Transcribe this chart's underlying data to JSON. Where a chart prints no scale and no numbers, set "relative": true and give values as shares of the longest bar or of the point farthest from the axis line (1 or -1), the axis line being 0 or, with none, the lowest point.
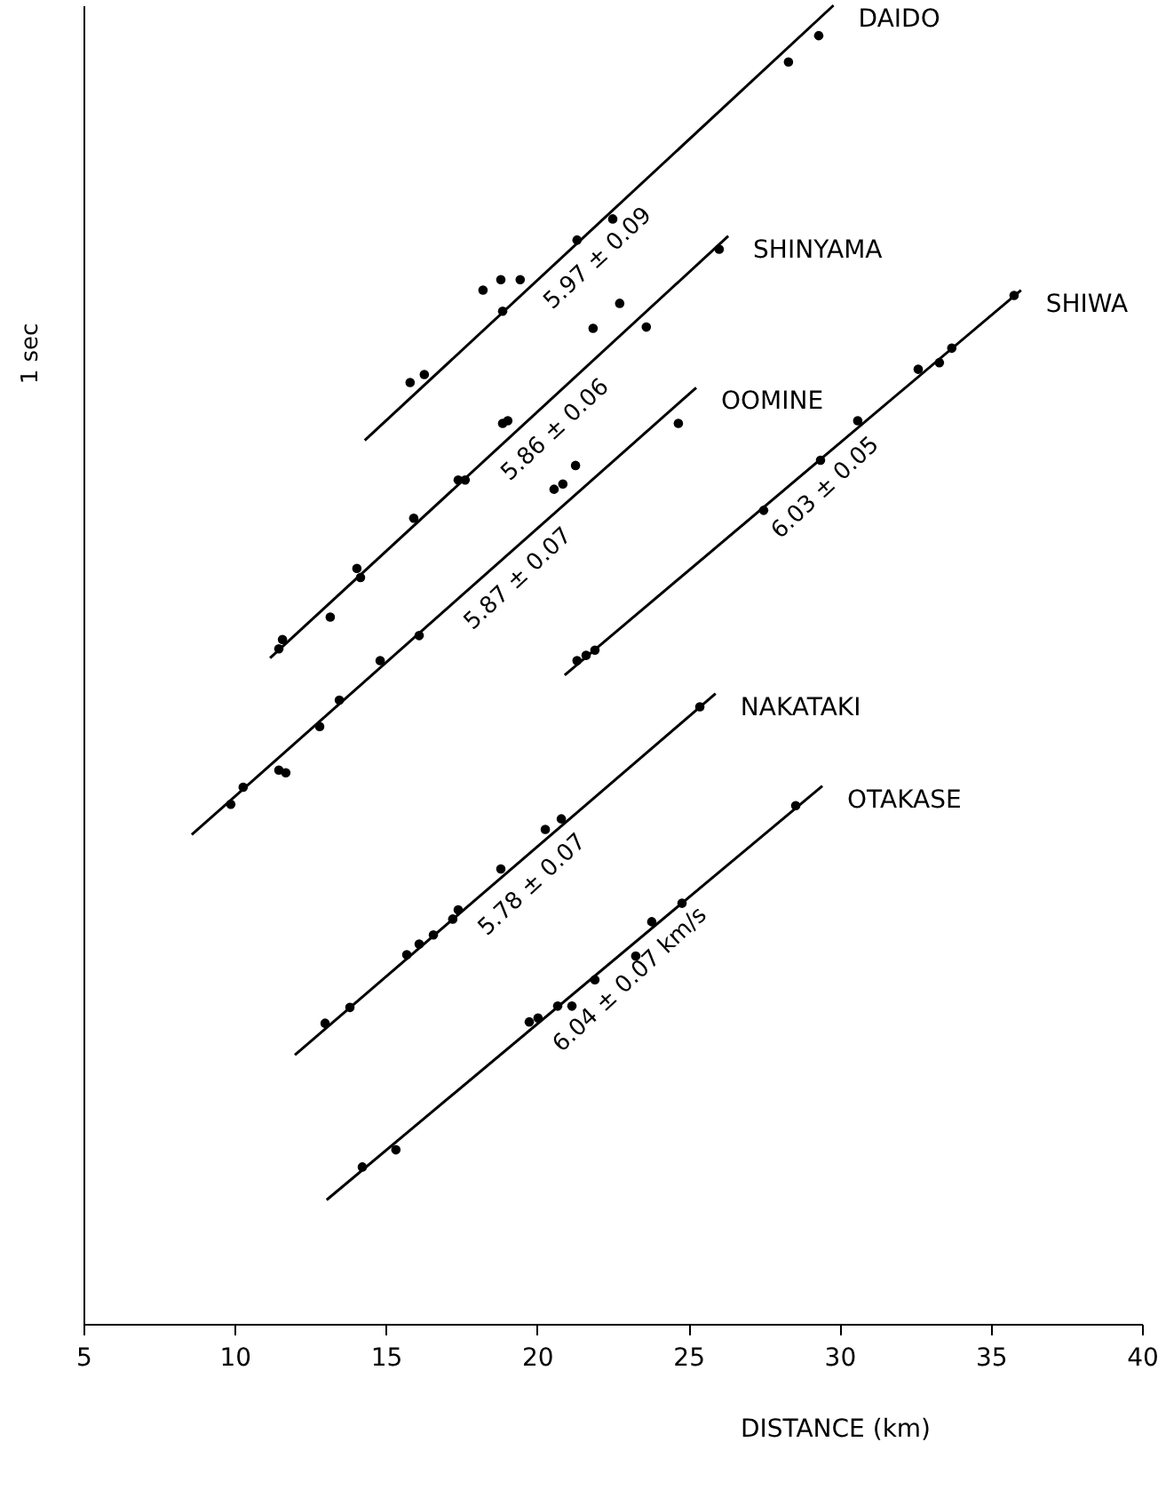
{
  "chart_data": {
    "type": "scatter",
    "relative": true,
    "xlabel": "DISTANCE  (km)",
    "xlim": [
      5,
      40
    ],
    "xticks": [
      5,
      10,
      15,
      20,
      25,
      30,
      35,
      40
    ],
    "grid": false,
    "series": [
      {
        "type": "scatter",
        "marker": "circle",
        "color": "#000000",
        "x": [
          15.8,
          16.27,
          18.21,
          18.8,
          18.86,
          19.44,
          21.32,
          22.5,
          28.31,
          29.31
        ],
        "values": [
          0.714,
          0.72,
          0.784,
          0.792,
          0.768,
          0.792,
          0.822,
          0.838,
          0.957,
          0.977
        ]
      },
      {
        "type": "line",
        "name": "DAIDO",
        "color": "#000000",
        "x": [
          14.3,
          29.8
        ],
        "values": [
          0.67,
          1.0
        ]
      },
      {
        "type": "scatter",
        "marker": "circle",
        "color": "#000000",
        "x": [
          11.46,
          11.58,
          13.16,
          14.04,
          14.16,
          15.92,
          17.39,
          17.62,
          18.86,
          19.03,
          21.85,
          22.73,
          23.61,
          26.02
        ],
        "values": [
          0.512,
          0.519,
          0.536,
          0.573,
          0.566,
          0.611,
          0.64,
          0.64,
          0.683,
          0.685,
          0.755,
          0.774,
          0.756,
          0.815
        ]
      },
      {
        "type": "line",
        "name": "SHINYAMA",
        "color": "#000000",
        "x": [
          11.17,
          26.32
        ],
        "values": [
          0.505,
          0.825
        ]
      },
      {
        "type": "scatter",
        "marker": "circle",
        "color": "#000000",
        "x": [
          9.87,
          10.28,
          11.46,
          11.69,
          12.81,
          13.46,
          14.81,
          16.1,
          20.56,
          20.85,
          21.27,
          24.67
        ],
        "values": [
          0.394,
          0.407,
          0.42,
          0.418,
          0.453,
          0.473,
          0.503,
          0.522,
          0.633,
          0.637,
          0.651,
          0.683
        ]
      },
      {
        "type": "line",
        "name": "OOMINE",
        "color": "#000000",
        "x": [
          8.58,
          25.26
        ],
        "values": [
          0.371,
          0.71
        ]
      },
      {
        "type": "scatter",
        "marker": "circle",
        "color": "#000000",
        "x": [
          21.32,
          21.62,
          21.91,
          27.49,
          29.37,
          30.6,
          32.6,
          33.3,
          33.71,
          35.77
        ],
        "values": [
          0.503,
          0.507,
          0.511,
          0.617,
          0.655,
          0.685,
          0.724,
          0.729,
          0.74,
          0.78
        ]
      },
      {
        "type": "line",
        "name": "SHIWA",
        "color": "#000000",
        "x": [
          20.91,
          36.0
        ],
        "values": [
          0.492,
          0.784
        ]
      },
      {
        "type": "scatter",
        "marker": "circle",
        "color": "#000000",
        "x": [
          12.99,
          13.81,
          15.69,
          16.1,
          16.57,
          17.21,
          17.39,
          18.8,
          20.27,
          20.8,
          25.38
        ],
        "values": [
          0.228,
          0.24,
          0.28,
          0.288,
          0.295,
          0.307,
          0.314,
          0.345,
          0.375,
          0.383,
          0.468
        ]
      },
      {
        "type": "line",
        "name": "NAKATAKI",
        "color": "#000000",
        "x": [
          11.99,
          25.9
        ],
        "values": [
          0.204,
          0.478
        ]
      },
      {
        "type": "scatter",
        "marker": "circle",
        "color": "#000000",
        "x": [
          14.22,
          15.33,
          19.74,
          20.03,
          20.68,
          21.15,
          21.91,
          23.26,
          23.79,
          24.79,
          28.55
        ],
        "values": [
          0.119,
          0.132,
          0.229,
          0.232,
          0.241,
          0.241,
          0.261,
          0.279,
          0.305,
          0.319,
          0.393
        ]
      },
      {
        "type": "line",
        "name": "OTAKASE",
        "color": "#000000",
        "x": [
          13.04,
          29.43
        ],
        "values": [
          0.094,
          0.408
        ]
      }
    ],
    "annotations": [
      {
        "text": "5.97 ± 0.09",
        "x": 21.44,
        "y": 0.822
      },
      {
        "text": "5.86 ± 0.06",
        "x": 20.03,
        "y": 0.692
      },
      {
        "text": "5.87 ± 0.07",
        "x": 18.8,
        "y": 0.579
      },
      {
        "text": "6.03 ± 0.05",
        "x": 28.96,
        "y": 0.648
      },
      {
        "text": "5.78 ± 0.07",
        "x": 19.27,
        "y": 0.347
      },
      {
        "text": "6.04 ± 0.07  km/s",
        "x": 22.5,
        "y": 0.275
      },
      "1 sec"
    ]
  }
}
